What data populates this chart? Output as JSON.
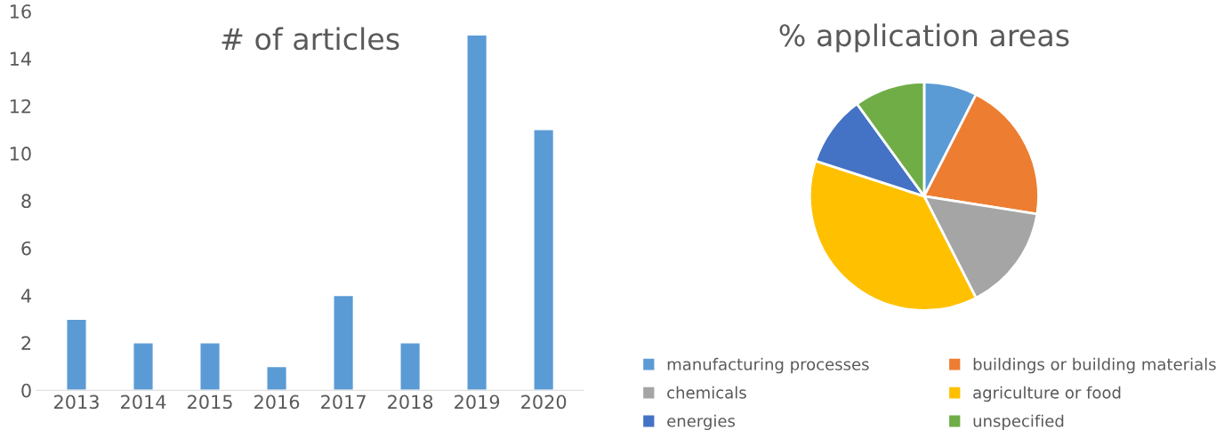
{
  "chart_data": [
    {
      "type": "bar",
      "title": "# of articles",
      "categories": [
        "2013",
        "2014",
        "2015",
        "2016",
        "2017",
        "2018",
        "2019",
        "2020"
      ],
      "values": [
        3,
        2,
        2,
        1,
        4,
        2,
        15,
        11
      ],
      "color": "#5b9bd5",
      "ylim": [
        0,
        16
      ],
      "yticks": [
        0,
        2,
        4,
        6,
        8,
        10,
        12,
        14,
        16
      ],
      "grid": false
    },
    {
      "type": "pie",
      "title": "% application areas",
      "categories": [
        "manufacturing processes",
        "buildings or building materials",
        "chemicals",
        "agriculture or food",
        "energies",
        "unspecified"
      ],
      "values": [
        7.5,
        20,
        15,
        37.5,
        10,
        10
      ],
      "colors": [
        "#5b9bd5",
        "#ed7d31",
        "#a5a5a5",
        "#ffc000",
        "#4472c4",
        "#70ad47"
      ],
      "legend": "bottom"
    }
  ]
}
